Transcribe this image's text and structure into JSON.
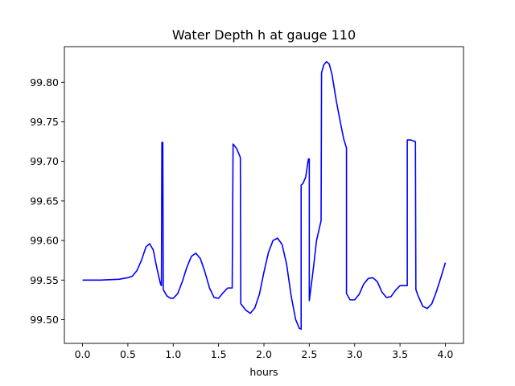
{
  "chart_data": {
    "type": "line",
    "title": "Water Depth h at gauge 110",
    "xlabel": "hours",
    "ylabel": "",
    "xlim": [
      -0.2,
      4.2
    ],
    "ylim": [
      99.47,
      99.845
    ],
    "x_ticks": [
      0.0,
      0.5,
      1.0,
      1.5,
      2.0,
      2.5,
      3.0,
      3.5,
      4.0
    ],
    "x_tick_labels": [
      "0.0",
      "0.5",
      "1.0",
      "1.5",
      "2.0",
      "2.5",
      "3.0",
      "3.5",
      "4.0"
    ],
    "y_ticks": [
      99.5,
      99.55,
      99.6,
      99.65,
      99.7,
      99.75,
      99.8
    ],
    "y_tick_labels": [
      "99.50",
      "99.55",
      "99.60",
      "99.65",
      "99.70",
      "99.75",
      "99.80"
    ],
    "grid": false,
    "series": [
      {
        "color": "#0000ff",
        "points": [
          [
            0.0,
            99.55
          ],
          [
            0.2,
            99.55
          ],
          [
            0.4,
            99.551
          ],
          [
            0.5,
            99.553
          ],
          [
            0.55,
            99.555
          ],
          [
            0.6,
            99.562
          ],
          [
            0.65,
            99.575
          ],
          [
            0.7,
            99.592
          ],
          [
            0.74,
            99.596
          ],
          [
            0.78,
            99.588
          ],
          [
            0.82,
            99.565
          ],
          [
            0.86,
            99.545
          ],
          [
            0.87,
            99.543
          ],
          [
            0.875,
            99.724
          ],
          [
            0.885,
            99.724
          ],
          [
            0.89,
            99.538
          ],
          [
            0.93,
            99.53
          ],
          [
            0.97,
            99.527
          ],
          [
            1.0,
            99.527
          ],
          [
            1.05,
            99.533
          ],
          [
            1.1,
            99.548
          ],
          [
            1.15,
            99.566
          ],
          [
            1.2,
            99.58
          ],
          [
            1.25,
            99.584
          ],
          [
            1.3,
            99.577
          ],
          [
            1.35,
            99.56
          ],
          [
            1.4,
            99.54
          ],
          [
            1.45,
            99.528
          ],
          [
            1.5,
            99.527
          ],
          [
            1.55,
            99.534
          ],
          [
            1.6,
            99.54
          ],
          [
            1.65,
            99.54
          ],
          [
            1.66,
            99.722
          ],
          [
            1.7,
            99.716
          ],
          [
            1.74,
            99.705
          ],
          [
            1.745,
            99.52
          ],
          [
            1.8,
            99.512
          ],
          [
            1.85,
            99.508
          ],
          [
            1.9,
            99.515
          ],
          [
            1.95,
            99.532
          ],
          [
            2.0,
            99.56
          ],
          [
            2.05,
            99.585
          ],
          [
            2.1,
            99.6
          ],
          [
            2.15,
            99.603
          ],
          [
            2.2,
            99.595
          ],
          [
            2.25,
            99.57
          ],
          [
            2.3,
            99.53
          ],
          [
            2.35,
            99.5
          ],
          [
            2.39,
            99.489
          ],
          [
            2.41,
            99.488
          ],
          [
            2.41,
            99.67
          ],
          [
            2.43,
            99.672
          ],
          [
            2.46,
            99.68
          ],
          [
            2.49,
            99.703
          ],
          [
            2.5,
            99.703
          ],
          [
            2.5,
            99.524
          ],
          [
            2.54,
            99.56
          ],
          [
            2.58,
            99.6
          ],
          [
            2.6,
            99.61
          ],
          [
            2.63,
            99.625
          ],
          [
            2.635,
            99.812
          ],
          [
            2.66,
            99.822
          ],
          [
            2.69,
            99.826
          ],
          [
            2.72,
            99.823
          ],
          [
            2.75,
            99.81
          ],
          [
            2.8,
            99.775
          ],
          [
            2.85,
            99.745
          ],
          [
            2.88,
            99.728
          ],
          [
            2.91,
            99.717
          ],
          [
            2.91,
            99.533
          ],
          [
            2.95,
            99.525
          ],
          [
            3.0,
            99.525
          ],
          [
            3.05,
            99.532
          ],
          [
            3.1,
            99.545
          ],
          [
            3.15,
            99.552
          ],
          [
            3.2,
            99.553
          ],
          [
            3.25,
            99.548
          ],
          [
            3.3,
            99.535
          ],
          [
            3.35,
            99.528
          ],
          [
            3.4,
            99.529
          ],
          [
            3.45,
            99.537
          ],
          [
            3.5,
            99.543
          ],
          [
            3.58,
            99.543
          ],
          [
            3.58,
            99.727
          ],
          [
            3.62,
            99.727
          ],
          [
            3.67,
            99.725
          ],
          [
            3.675,
            99.538
          ],
          [
            3.7,
            99.53
          ],
          [
            3.75,
            99.517
          ],
          [
            3.8,
            99.514
          ],
          [
            3.85,
            99.52
          ],
          [
            3.9,
            99.535
          ],
          [
            3.95,
            99.553
          ],
          [
            4.0,
            99.572
          ]
        ]
      }
    ]
  }
}
